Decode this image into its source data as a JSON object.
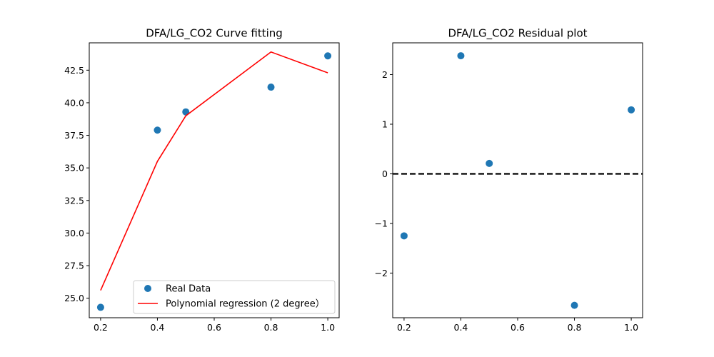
{
  "colors": {
    "scatter": "#1f77b4",
    "fit_line": "#ff0000",
    "zero_line": "#000000",
    "axes": "#000000",
    "legend_border": "#cccccc"
  },
  "chart_data": [
    {
      "type": "scatter",
      "title": "DFA/LG_CO2 Curve fitting",
      "xlabel": "",
      "ylabel": "",
      "xlim": [
        0.16,
        1.04
      ],
      "ylim": [
        23.5,
        44.6
      ],
      "x_ticks": [
        0.2,
        0.4,
        0.6,
        0.8,
        1.0
      ],
      "x_tick_labels": [
        "0.2",
        "0.4",
        "0.6",
        "0.8",
        "1.0"
      ],
      "y_ticks": [
        25.0,
        27.5,
        30.0,
        32.5,
        35.0,
        37.5,
        40.0,
        42.5
      ],
      "y_tick_labels": [
        "25.0",
        "27.5",
        "30.0",
        "32.5",
        "35.0",
        "37.5",
        "40.0",
        "42.5"
      ],
      "grid": false,
      "legend_position": "lower-right",
      "series": [
        {
          "name": "Real Data",
          "kind": "scatter",
          "x": [
            0.2,
            0.4,
            0.5,
            0.8,
            1.0
          ],
          "y": [
            24.3,
            37.9,
            39.3,
            41.2,
            43.6
          ]
        },
        {
          "name": "Polynomial regression (2 degree）",
          "kind": "line",
          "x": [
            0.2,
            0.4,
            0.5,
            0.8,
            1.0
          ],
          "y": [
            25.6,
            35.5,
            39.0,
            43.9,
            42.3
          ]
        }
      ]
    },
    {
      "type": "scatter",
      "title": "DFA/LG_CO2 Residual plot",
      "xlabel": "",
      "ylabel": "",
      "xlim": [
        0.16,
        1.04
      ],
      "ylim": [
        -2.9,
        2.64
      ],
      "x_ticks": [
        0.2,
        0.4,
        0.6,
        0.8,
        1.0
      ],
      "x_tick_labels": [
        "0.2",
        "0.4",
        "0.6",
        "0.8",
        "1.0"
      ],
      "y_ticks": [
        -2,
        -1,
        0,
        1,
        2
      ],
      "y_tick_labels": [
        "−2",
        "−1",
        "0",
        "1",
        "2"
      ],
      "grid": false,
      "reference_line_y": 0,
      "series": [
        {
          "kind": "scatter",
          "x": [
            0.2,
            0.4,
            0.5,
            0.8,
            1.0
          ],
          "y": [
            -1.25,
            2.38,
            0.21,
            -2.65,
            1.29
          ]
        }
      ]
    }
  ]
}
